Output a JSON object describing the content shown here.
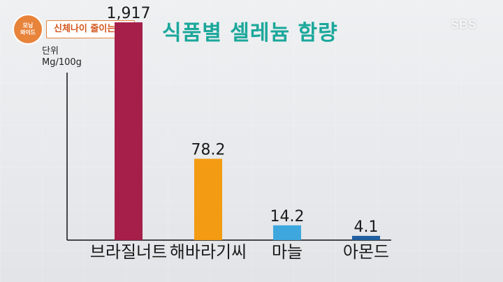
{
  "badge": {
    "line1": "모닝",
    "line2": "와이드"
  },
  "segment_tag": "신체나이 줄이는 법",
  "logo": "SBS",
  "chart_data": {
    "type": "bar",
    "title": "식품별 셀레늄 함량",
    "unit_line1": "단위",
    "unit_line2": "Mg/100g",
    "categories": [
      "브라질너트",
      "해바라기씨",
      "마늘",
      "아몬드"
    ],
    "values": [
      1917,
      78.2,
      14.2,
      4.1
    ],
    "value_labels": [
      "1,917",
      "78.2",
      "14.2",
      "4.1"
    ],
    "colors": [
      "#a61f4a",
      "#f39b12",
      "#3ea7de",
      "#1f5fa0"
    ],
    "note": "first bar extends beyond plotted area (broken scale)"
  }
}
